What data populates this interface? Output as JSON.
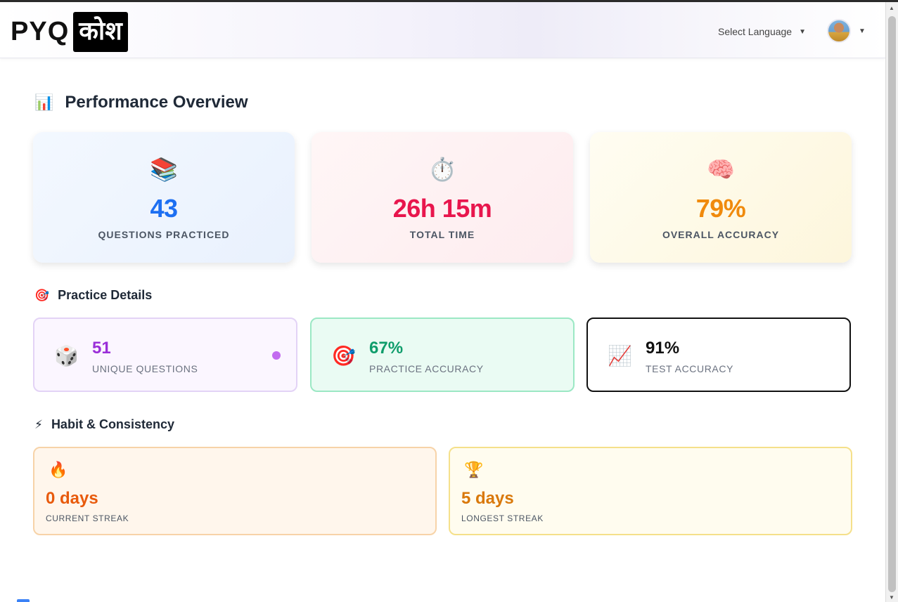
{
  "header": {
    "logo_left": "PYQ",
    "logo_right": "कोश",
    "language_label": "Select Language"
  },
  "performance": {
    "title": "Performance Overview",
    "title_icon": "📊",
    "cards": [
      {
        "icon": "📚",
        "value": "43",
        "label": "QUESTIONS PRACTICED",
        "color": "#1d6ff2"
      },
      {
        "icon": "⏱️",
        "value": "26h 15m",
        "label": "TOTAL TIME",
        "color": "#e8164d"
      },
      {
        "icon": "🧠",
        "value": "79%",
        "label": "OVERALL ACCURACY",
        "color": "#f08a0c"
      }
    ]
  },
  "practice": {
    "title": "Practice Details",
    "title_icon": "🎯",
    "cards": [
      {
        "icon": "🎲",
        "value": "51",
        "label": "UNIQUE QUESTIONS",
        "color": "#9a2fd8"
      },
      {
        "icon": "🎯",
        "value": "67%",
        "label": "PRACTICE ACCURACY",
        "color": "#0f9d6b"
      },
      {
        "icon": "📈",
        "value": "91%",
        "label": "TEST ACCURACY",
        "color": "#111111"
      }
    ]
  },
  "habit": {
    "title": "Habit & Consistency",
    "title_icon": "⚡",
    "cards": [
      {
        "icon": "🔥",
        "value": "0 days",
        "label": "CURRENT STREAK",
        "color": "#e85a0c"
      },
      {
        "icon": "🏆",
        "value": "5 days",
        "label": "LONGEST STREAK",
        "color": "#d9780a"
      }
    ]
  }
}
